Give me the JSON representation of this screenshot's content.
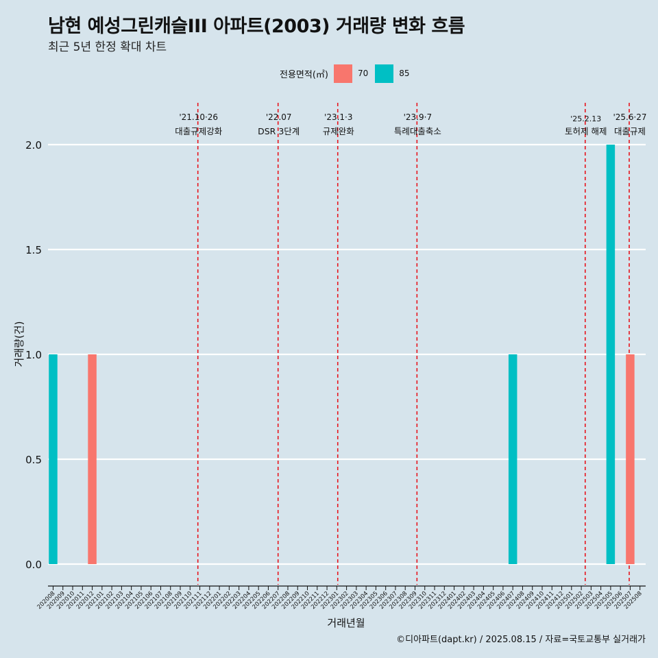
{
  "title": "남현 예성그린캐슬III 아파트(2003) 거래량 변화 흐름",
  "subtitle": "최근 5년 한정 확대 차트",
  "legend": {
    "title": "전용면적(㎡)",
    "items": [
      {
        "label": "70",
        "color": "#f8766d"
      },
      {
        "label": "85",
        "color": "#00bfc4"
      }
    ]
  },
  "caption": "©디아파트(dapt.kr) / 2025.08.15 / 자료=국토교통부 실거래가",
  "chart_data": {
    "type": "bar",
    "xlabel": "거래년월",
    "ylabel": "거래량(건)",
    "ylim": [
      0,
      2
    ],
    "yticks": [
      "0.0",
      "0.5",
      "1.0",
      "1.5",
      "2.0"
    ],
    "grid": true,
    "legend_position": "top",
    "categories": [
      "202008",
      "202009",
      "202010",
      "202011",
      "202012",
      "202101",
      "202102",
      "202103",
      "202104",
      "202105",
      "202106",
      "202107",
      "202108",
      "202109",
      "202110",
      "202111",
      "202112",
      "202201",
      "202202",
      "202203",
      "202204",
      "202205",
      "202206",
      "202207",
      "202208",
      "202209",
      "202210",
      "202211",
      "202212",
      "202301",
      "202302",
      "202303",
      "202304",
      "202305",
      "202306",
      "202307",
      "202308",
      "202309",
      "202310",
      "202311",
      "202312",
      "202401",
      "202402",
      "202403",
      "202404",
      "202405",
      "202406",
      "202407",
      "202408",
      "202409",
      "202410",
      "202411",
      "202412",
      "202501",
      "202502",
      "202503",
      "202504",
      "202505",
      "202506",
      "202507",
      "202508"
    ],
    "bars": [
      {
        "x": "202008",
        "series": "85",
        "value": 1
      },
      {
        "x": "202012",
        "series": "70",
        "value": 1
      },
      {
        "x": "202407",
        "series": "85",
        "value": 1
      },
      {
        "x": "202505",
        "series": "85",
        "value": 2
      },
      {
        "x": "202507",
        "series": "70",
        "value": 1
      }
    ],
    "series_colors": {
      "70": "#f8766d",
      "85": "#00bfc4"
    },
    "annotations": [
      {
        "x": "202110",
        "offset": 0.8,
        "date": "'21.10·26",
        "label": "대출규제강화"
      },
      {
        "x": "202207",
        "offset": 0,
        "date": "'22.07",
        "label": "DSR 3단계"
      },
      {
        "x": "202301",
        "offset": 0.1,
        "date": "'23.1·3",
        "label": "규제완화"
      },
      {
        "x": "202309",
        "offset": 0.2,
        "date": "'23.9·7",
        "label": "특례대출축소"
      },
      {
        "x": "202502",
        "offset": 0.4,
        "date": "'25.2.13",
        "label": "토허제 해제"
      },
      {
        "x": "202506",
        "offset": 0.9,
        "date": "'25.6·27",
        "label": "대출규제"
      }
    ]
  }
}
